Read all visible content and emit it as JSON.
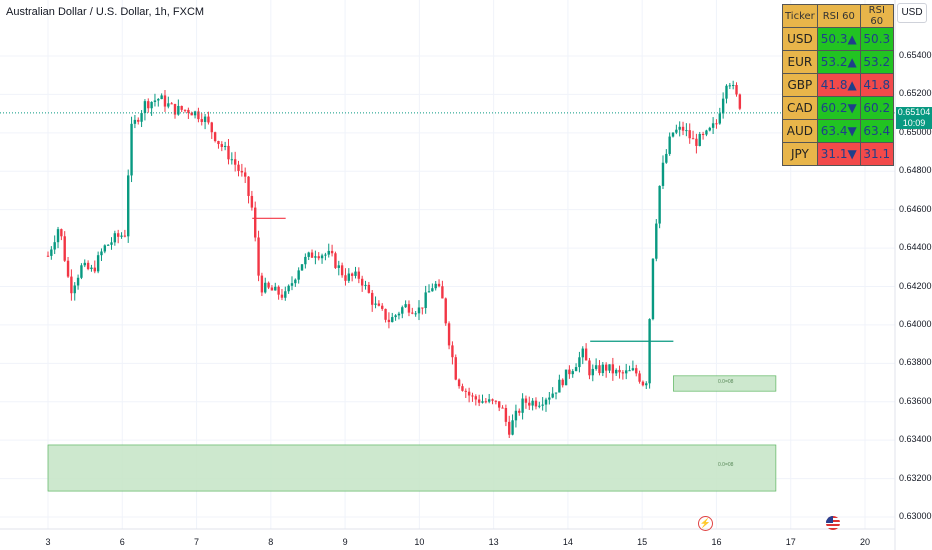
{
  "title": "Australian Dollar / U.S. Dollar, 1h, FXCM",
  "currency_badge": "USD",
  "last_price": {
    "value": "0.65104",
    "countdown": "10:09"
  },
  "zones": [
    {
      "label": "0.0=08"
    },
    {
      "label": "0.0=08"
    }
  ],
  "rsi_table": {
    "headers": [
      "Ticker",
      "RSI 60",
      "RSI 60"
    ],
    "rows": [
      {
        "ticker": "USD",
        "value": "50.3",
        "arrow": "▲",
        "value2": "50.3",
        "trend": "up"
      },
      {
        "ticker": "EUR",
        "value": "53.2",
        "arrow": "▲",
        "value2": "53.2",
        "trend": "up"
      },
      {
        "ticker": "GBP",
        "value": "41.8",
        "arrow": "▲",
        "value2": "41.8",
        "trend": "dn"
      },
      {
        "ticker": "CAD",
        "value": "60.2",
        "arrow": "▼",
        "value2": "60.2",
        "trend": "up"
      },
      {
        "ticker": "AUD",
        "value": "63.4",
        "arrow": "▼",
        "value2": "63.4",
        "trend": "up"
      },
      {
        "ticker": "JPY",
        "value": "31.1",
        "arrow": "▼",
        "value2": "31.1",
        "trend": "dn"
      }
    ]
  },
  "colors": {
    "up": "#089981",
    "down": "#f23645",
    "zone": "#c8e6c9",
    "zone_border": "#4caf50"
  },
  "icons": [
    "lightning-icon",
    "us-flag-icon"
  ],
  "chart_data": {
    "type": "candlestick",
    "title": "Australian Dollar / U.S. Dollar, 1h, FXCM",
    "y_ticks": [
      "0.65400",
      "0.65200",
      "0.65000",
      "0.64800",
      "0.64600",
      "0.64400",
      "0.64200",
      "0.64000",
      "0.63800",
      "0.63600",
      "0.63400",
      "0.63200",
      "0.63000"
    ],
    "x_ticks": [
      "3",
      "6",
      "7",
      "8",
      "9",
      "10",
      "13",
      "14",
      "15",
      "16",
      "17",
      "20"
    ],
    "ylim": [
      0.6295,
      0.6553
    ],
    "x_range": [
      0,
      12.0
    ],
    "close_path": [
      [
        0.0,
        0.6436
      ],
      [
        0.15,
        0.6452
      ],
      [
        0.3,
        0.6418
      ],
      [
        0.45,
        0.643
      ],
      [
        0.6,
        0.6428
      ],
      [
        0.75,
        0.644
      ],
      [
        0.9,
        0.6445
      ],
      [
        1.05,
        0.6448
      ],
      [
        1.1,
        0.65
      ],
      [
        1.3,
        0.6515
      ],
      [
        1.5,
        0.6518
      ],
      [
        1.7,
        0.6512
      ],
      [
        1.9,
        0.6512
      ],
      [
        2.1,
        0.6508
      ],
      [
        2.3,
        0.6495
      ],
      [
        2.5,
        0.6485
      ],
      [
        2.65,
        0.6475
      ],
      [
        2.75,
        0.646
      ],
      [
        2.85,
        0.642
      ],
      [
        3.0,
        0.6418
      ],
      [
        3.2,
        0.6415
      ],
      [
        3.4,
        0.6432
      ],
      [
        3.6,
        0.6438
      ],
      [
        3.8,
        0.6436
      ],
      [
        4.0,
        0.6425
      ],
      [
        4.2,
        0.6425
      ],
      [
        4.4,
        0.641
      ],
      [
        4.6,
        0.6402
      ],
      [
        4.8,
        0.641
      ],
      [
        5.0,
        0.6408
      ],
      [
        5.2,
        0.6422
      ],
      [
        5.3,
        0.6415
      ],
      [
        5.4,
        0.6392
      ],
      [
        5.5,
        0.6372
      ],
      [
        5.7,
        0.6362
      ],
      [
        5.9,
        0.636
      ],
      [
        6.1,
        0.6358
      ],
      [
        6.2,
        0.6345
      ],
      [
        6.4,
        0.636
      ],
      [
        6.6,
        0.636
      ],
      [
        6.8,
        0.6365
      ],
      [
        7.0,
        0.6375
      ],
      [
        7.2,
        0.6385
      ],
      [
        7.3,
        0.6375
      ],
      [
        7.5,
        0.6378
      ],
      [
        7.7,
        0.6374
      ],
      [
        7.9,
        0.6376
      ],
      [
        8.05,
        0.6368
      ],
      [
        8.15,
        0.644
      ],
      [
        8.25,
        0.6478
      ],
      [
        8.4,
        0.65
      ],
      [
        8.55,
        0.6502
      ],
      [
        8.7,
        0.6495
      ],
      [
        8.85,
        0.6498
      ],
      [
        9.0,
        0.6505
      ],
      [
        9.15,
        0.653
      ],
      [
        9.25,
        0.652
      ],
      [
        9.35,
        0.6512
      ]
    ],
    "zones": [
      {
        "x0": 0.0,
        "x1": 9.8,
        "y0": 0.63375,
        "y1": 0.63135
      },
      {
        "x0": 8.42,
        "x1": 9.8,
        "y0": 0.63735,
        "y1": 0.63655
      }
    ],
    "levels": [
      {
        "x0": 2.75,
        "x1": 3.2,
        "y": 0.64555,
        "color": "#f23645"
      },
      {
        "x0": 7.3,
        "x1": 8.42,
        "y": 0.63915,
        "color": "#089981"
      }
    ],
    "last_price": 0.65104
  }
}
